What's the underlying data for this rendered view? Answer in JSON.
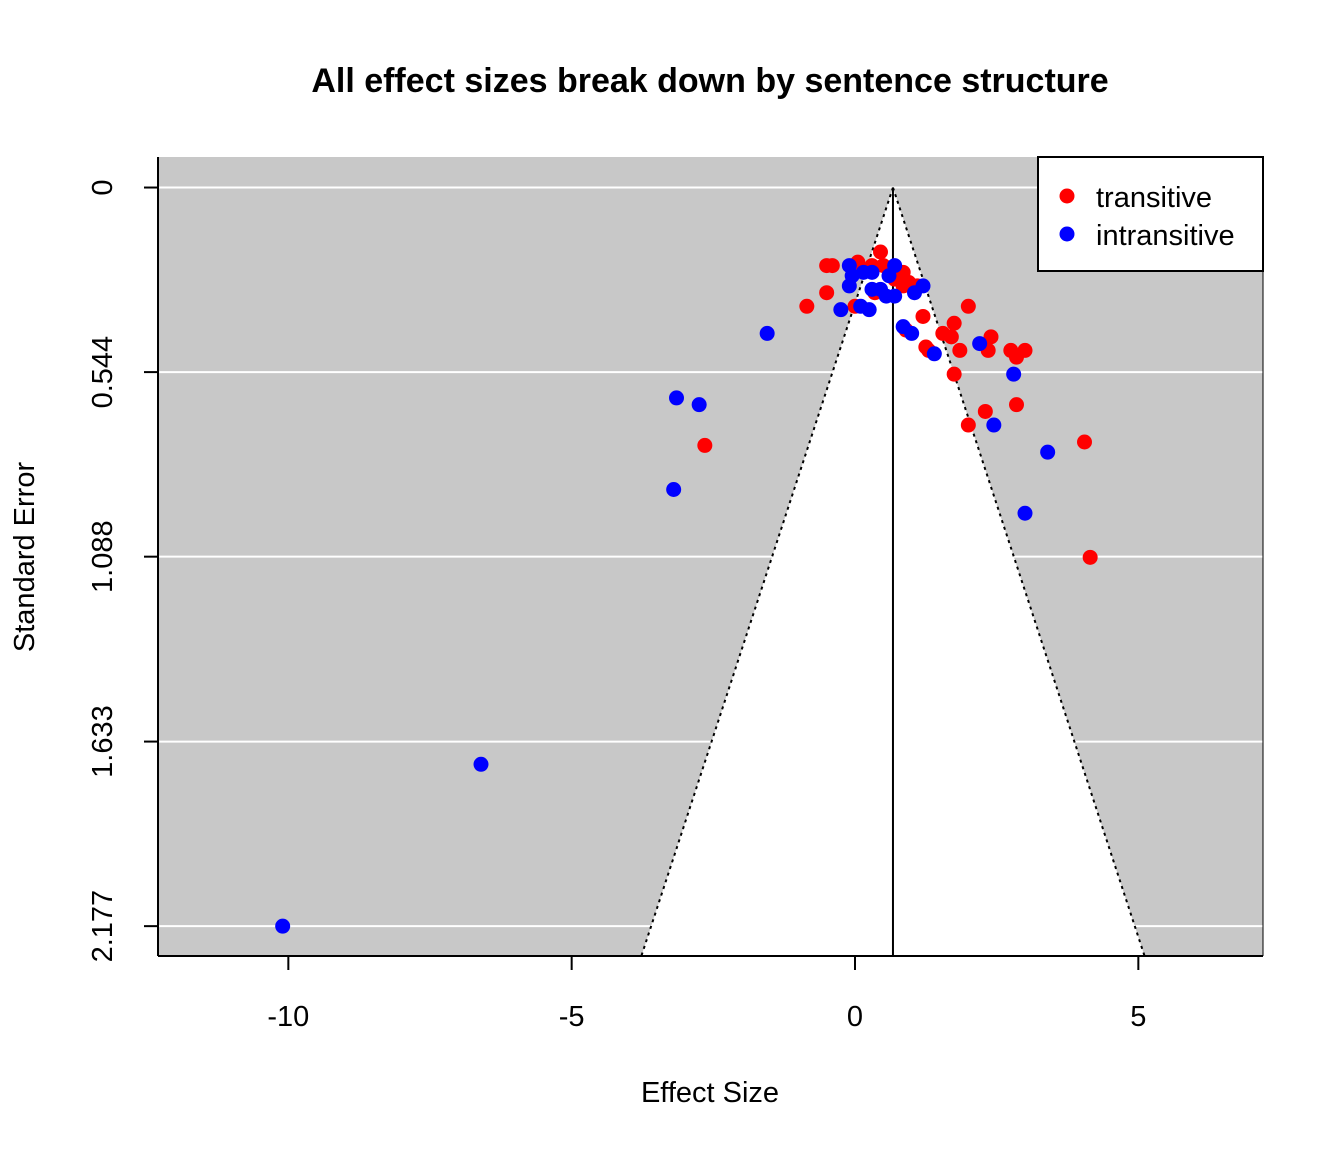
{
  "chart_data": {
    "type": "scatter",
    "title": "All effect sizes break down by sentence structure",
    "xlabel": "Effect Size",
    "ylabel": "Standard Error",
    "xlim": [
      -12.3,
      7.2
    ],
    "ylim": [
      2.265,
      -0.09
    ],
    "y_reversed": true,
    "x_ticks": [
      -10,
      -5,
      0,
      5
    ],
    "x_tick_labels": [
      "-10",
      "-5",
      "0",
      "5"
    ],
    "y_ticks": [
      0,
      0.544,
      1.088,
      1.633,
      2.177
    ],
    "y_tick_labels": [
      "0",
      "0.544",
      "1.088",
      "1.633",
      "2.177"
    ],
    "grid": "horizontal, white, at y ticks",
    "background": "#c8c8c8",
    "funnel": {
      "center": 0.67,
      "apex_se": 0,
      "bottom_se": 2.265,
      "bottom_left": -3.77,
      "bottom_right": 5.11,
      "fill": "#ffffff",
      "edge_style": "dotted"
    },
    "legend": {
      "placement": "top-right",
      "entries": [
        {
          "label": "transitive",
          "color": "#ff0000"
        },
        {
          "label": "intransitive",
          "color": "#0000ff"
        }
      ]
    },
    "series": [
      {
        "name": "transitive",
        "color": "#ff0000",
        "points": [
          [
            0.45,
            0.19
          ],
          [
            0.05,
            0.22
          ],
          [
            -0.4,
            0.23
          ],
          [
            -0.5,
            0.23
          ],
          [
            0.3,
            0.23
          ],
          [
            0.5,
            0.23
          ],
          [
            0.6,
            0.24
          ],
          [
            0.85,
            0.25
          ],
          [
            0.7,
            0.27
          ],
          [
            0.95,
            0.28
          ],
          [
            1.1,
            0.29
          ],
          [
            -0.5,
            0.31
          ],
          [
            0.35,
            0.31
          ],
          [
            0.85,
            0.29
          ],
          [
            -0.85,
            0.35
          ],
          [
            0.0,
            0.35
          ],
          [
            2.0,
            0.35
          ],
          [
            1.2,
            0.38
          ],
          [
            1.75,
            0.4
          ],
          [
            0.9,
            0.42
          ],
          [
            1.55,
            0.43
          ],
          [
            1.7,
            0.44
          ],
          [
            2.4,
            0.44
          ],
          [
            1.25,
            0.47
          ],
          [
            1.85,
            0.48
          ],
          [
            2.35,
            0.48
          ],
          [
            2.75,
            0.48
          ],
          [
            3.0,
            0.48
          ],
          [
            2.85,
            0.5
          ],
          [
            1.3,
            0.48
          ],
          [
            1.75,
            0.55
          ],
          [
            2.85,
            0.64
          ],
          [
            2.3,
            0.66
          ],
          [
            2.0,
            0.7
          ],
          [
            -2.65,
            0.76
          ],
          [
            4.05,
            0.75
          ],
          [
            4.15,
            1.09
          ]
        ]
      },
      {
        "name": "intransitive",
        "color": "#0000ff",
        "points": [
          [
            -0.1,
            0.23
          ],
          [
            0.7,
            0.23
          ],
          [
            0.15,
            0.25
          ],
          [
            0.3,
            0.25
          ],
          [
            -0.05,
            0.26
          ],
          [
            0.6,
            0.26
          ],
          [
            -0.1,
            0.29
          ],
          [
            0.3,
            0.3
          ],
          [
            0.45,
            0.3
          ],
          [
            0.55,
            0.32
          ],
          [
            1.05,
            0.31
          ],
          [
            0.7,
            0.32
          ],
          [
            1.2,
            0.29
          ],
          [
            -0.25,
            0.36
          ],
          [
            0.1,
            0.35
          ],
          [
            0.25,
            0.36
          ],
          [
            0.85,
            0.41
          ],
          [
            1.0,
            0.43
          ],
          [
            2.2,
            0.46
          ],
          [
            1.4,
            0.49
          ],
          [
            2.8,
            0.55
          ],
          [
            -1.55,
            0.43
          ],
          [
            -3.15,
            0.62
          ],
          [
            -2.75,
            0.64
          ],
          [
            2.45,
            0.7
          ],
          [
            3.4,
            0.78
          ],
          [
            -3.2,
            0.89
          ],
          [
            3.0,
            0.96
          ],
          [
            -6.6,
            1.7
          ],
          [
            -10.1,
            2.177
          ]
        ]
      }
    ]
  }
}
